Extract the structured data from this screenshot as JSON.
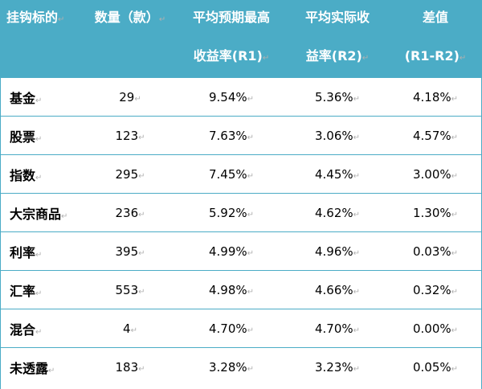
{
  "header": {
    "col0": [
      "挂钩标的"
    ],
    "col1": [
      "数量（款）"
    ],
    "col2": [
      "平均预期最高",
      "收益率(R1)"
    ],
    "col3": [
      "平均实际收",
      "益率(R2)"
    ],
    "col4": [
      "差值",
      "(R1-R2)"
    ]
  },
  "para_mark": "↵",
  "rows": [
    {
      "name": "基金",
      "count": "29",
      "r1": "9.54%",
      "r2": "5.36%",
      "diff": "4.18%"
    },
    {
      "name": "股票",
      "count": "123",
      "r1": "7.63%",
      "r2": "3.06%",
      "diff": "4.57%"
    },
    {
      "name": "指数",
      "count": "295",
      "r1": "7.45%",
      "r2": "4.45%",
      "diff": "3.00%"
    },
    {
      "name": "大宗商品",
      "count": "236",
      "r1": "5.92%",
      "r2": "4.62%",
      "diff": "1.30%"
    },
    {
      "name": "利率",
      "count": "395",
      "r1": "4.99%",
      "r2": "4.96%",
      "diff": "0.03%"
    },
    {
      "name": "汇率",
      "count": "553",
      "r1": "4.98%",
      "r2": "4.66%",
      "diff": "0.32%"
    },
    {
      "name": "混合",
      "count": "4",
      "r1": "4.70%",
      "r2": "4.70%",
      "diff": "0.00%"
    },
    {
      "name": "未透露",
      "count": "183",
      "r1": "3.28%",
      "r2": "3.23%",
      "diff": "0.05%"
    }
  ]
}
